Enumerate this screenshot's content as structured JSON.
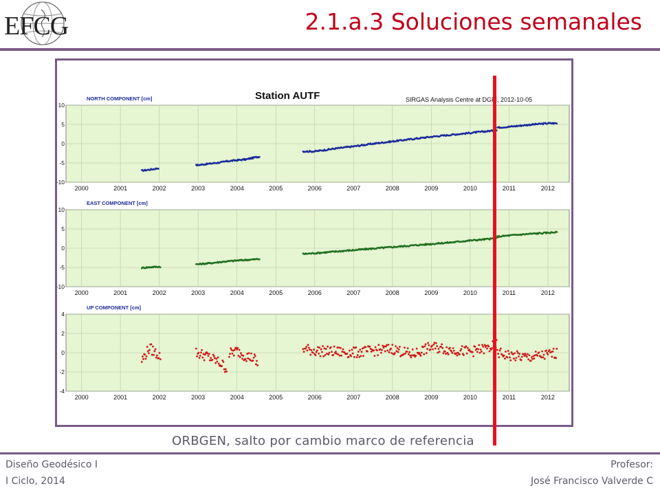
{
  "slide": {
    "title": "2.1.a.3 Soluciones semanales",
    "caption": "ORBGEN,  salto por cambio marco de referencia",
    "footer_left": [
      "Diseño Geodésico  I",
      "I Ciclo, 2014"
    ],
    "footer_right": [
      "Profesor:",
      "José Francisco Valverde C"
    ]
  },
  "logo": {
    "text": "EFCG"
  },
  "colors": {
    "title": "#c0001a",
    "rule": "#7a5a86",
    "marker": "#e8101e",
    "north": "#1a2a9a",
    "east": "#1f6f1f",
    "up": "#d01818",
    "plot_bg": "#e6f5d2"
  },
  "chart_data": {
    "type": "scatter",
    "title": "Station AUTF",
    "source_note": "SIRGAS Analysis Centre at DGFI, 2012-10-05",
    "x_ticks": [
      2000,
      2001,
      2002,
      2003,
      2004,
      2005,
      2006,
      2007,
      2008,
      2009,
      2010,
      2011,
      2012
    ],
    "marker_x": 2010.7,
    "marker_note": "ORBGEN,  salto por cambio marco de referencia",
    "panels": [
      {
        "label": "NORTH COMPONENT [cm]",
        "ylim": [
          -10,
          10
        ],
        "y_ticks": [
          10,
          5,
          0,
          -5,
          -10
        ],
        "series": {
          "color": "#1a2a9a",
          "segments": [
            {
              "x": [
                2001.55,
                2001.7,
                2001.85,
                2002.0
              ],
              "y": [
                -7.0,
                -6.8,
                -6.6,
                -6.3
              ]
            },
            {
              "x": [
                2002.95,
                2003.2,
                2003.45,
                2003.7
              ],
              "y": [
                -5.6,
                -5.3,
                -5.0,
                -4.7
              ]
            },
            {
              "x": [
                2003.7,
                2003.9,
                2004.1,
                2004.3
              ],
              "y": [
                -4.6,
                -4.4,
                -4.2,
                -4.0
              ]
            },
            {
              "x": [
                2004.3,
                2004.45,
                2004.6
              ],
              "y": [
                -3.9,
                -3.6,
                -3.3
              ]
            },
            {
              "x": [
                2005.7,
                2006.0,
                2006.5,
                2007.0,
                2007.5,
                2008.0,
                2008.5,
                2009.0,
                2009.5,
                2010.0,
                2010.5,
                2010.7
              ],
              "y": [
                -2.0,
                -2.0,
                -1.3,
                -0.7,
                0.0,
                0.6,
                1.2,
                1.8,
                2.3,
                2.8,
                3.3,
                3.5
              ]
            },
            {
              "x": [
                2010.7,
                2011.0,
                2011.5,
                2012.0,
                2012.25
              ],
              "y": [
                4.2,
                4.4,
                4.9,
                5.3,
                5.3
              ]
            }
          ]
        }
      },
      {
        "label": "EAST COMPONENT [cm]",
        "ylim": [
          -10,
          10
        ],
        "y_ticks": [
          10,
          5,
          0,
          -5,
          -10
        ],
        "series": {
          "color": "#1f6f1f",
          "segments": [
            {
              "x": [
                2001.55,
                2001.8,
                2002.05
              ],
              "y": [
                -5.1,
                -4.9,
                -4.8
              ]
            },
            {
              "x": [
                2002.95,
                2003.3,
                2003.65,
                2004.0,
                2004.3,
                2004.6
              ],
              "y": [
                -4.2,
                -3.9,
                -3.5,
                -3.2,
                -3.0,
                -2.8
              ]
            },
            {
              "x": [
                2005.7,
                2006.0,
                2006.5,
                2007.0,
                2007.5,
                2008.0,
                2008.5,
                2009.0,
                2009.5,
                2010.0,
                2010.5,
                2010.7
              ],
              "y": [
                -1.5,
                -1.3,
                -0.9,
                -0.5,
                -0.1,
                0.3,
                0.7,
                1.1,
                1.5,
                2.0,
                2.4,
                2.6
              ]
            },
            {
              "x": [
                2010.7,
                2011.0,
                2011.5,
                2012.0,
                2012.25
              ],
              "y": [
                3.0,
                3.3,
                3.7,
                4.0,
                4.2
              ]
            }
          ]
        }
      },
      {
        "label": "UP COMPONENT [cm]",
        "ylim": [
          -4,
          4
        ],
        "y_ticks": [
          4,
          2,
          0,
          -2,
          -4
        ],
        "series": {
          "color": "#d01818",
          "segments": [
            {
              "x": [
                2001.55,
                2001.75,
                2001.9,
                2002.05
              ],
              "y": [
                -0.8,
                0.5,
                0.0,
                -0.4
              ]
            },
            {
              "x": [
                2002.95,
                2003.2,
                2003.45,
                2003.65,
                2003.75
              ],
              "y": [
                0.0,
                -0.3,
                -0.8,
                -1.3,
                -1.8
              ]
            },
            {
              "x": [
                2003.8,
                2004.0,
                2004.2,
                2004.45,
                2004.55
              ],
              "y": [
                -0.1,
                0.2,
                -0.3,
                -0.6,
                -1.5
              ]
            },
            {
              "x": [
                2005.7,
                2006.0,
                2006.5,
                2007.0,
                2007.5,
                2008.0,
                2008.5,
                2009.0,
                2009.5,
                2010.0,
                2010.5,
                2010.7
              ],
              "y": [
                0.4,
                0.2,
                0.1,
                0.0,
                0.2,
                0.4,
                -0.2,
                0.6,
                0.3,
                0.1,
                0.5,
                0.9
              ]
            },
            {
              "x": [
                2010.7,
                2011.0,
                2011.5,
                2012.0,
                2012.25
              ],
              "y": [
                0.0,
                -0.3,
                -0.5,
                -0.2,
                0.0
              ]
            }
          ]
        }
      }
    ]
  }
}
